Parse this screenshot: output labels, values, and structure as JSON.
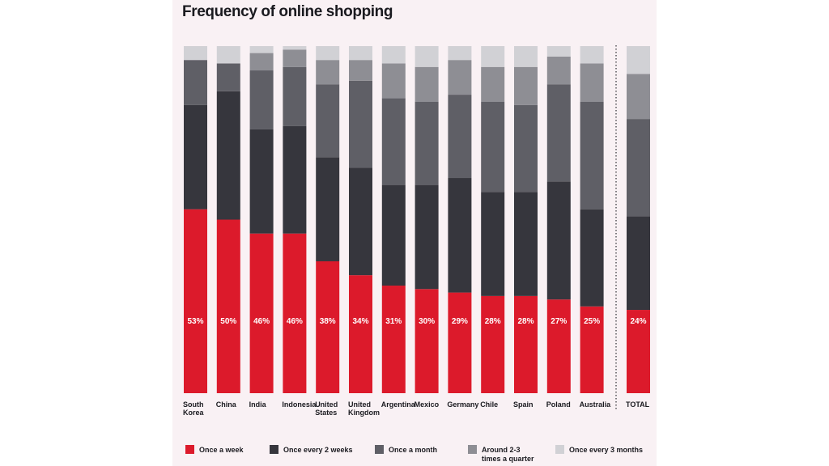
{
  "chart_data": {
    "type": "bar",
    "stacked": true,
    "percent_stacked": true,
    "title": "Frequency of online shopping",
    "categories": [
      [
        "South",
        "Korea"
      ],
      [
        "China"
      ],
      [
        "India"
      ],
      [
        "Indonesia"
      ],
      [
        "United",
        "States"
      ],
      [
        "United",
        "Kingdom"
      ],
      [
        "Argentina"
      ],
      [
        "Mexico"
      ],
      [
        "Germany"
      ],
      [
        "Chile"
      ],
      [
        "Spain"
      ],
      [
        "Poland"
      ],
      [
        "Australia"
      ],
      [
        "TOTAL"
      ]
    ],
    "series": [
      {
        "name": "Once a week",
        "color": "#dc1a2b",
        "values": [
          53,
          50,
          46,
          46,
          38,
          34,
          31,
          30,
          29,
          28,
          28,
          27,
          25,
          24
        ],
        "labels": [
          "53%",
          "50%",
          "46%",
          "46%",
          "38%",
          "34%",
          "31%",
          "30%",
          "29%",
          "28%",
          "28%",
          "27%",
          "25%",
          "24%"
        ]
      },
      {
        "name": "Once every 2 weeks",
        "color": "#36363d",
        "values": [
          30,
          37,
          30,
          31,
          30,
          31,
          29,
          30,
          33,
          30,
          30,
          34,
          28,
          27
        ]
      },
      {
        "name": "Once a month",
        "color": "#5f5f66",
        "values": [
          13,
          8,
          17,
          17,
          21,
          25,
          25,
          24,
          24,
          26,
          25,
          28,
          31,
          28
        ]
      },
      {
        "name": "Around 2-3 times a quarter",
        "color": "#8e8e94",
        "values": [
          0,
          0,
          5,
          5,
          7,
          6,
          10,
          10,
          10,
          10,
          11,
          8,
          11,
          13
        ]
      },
      {
        "name": "Once every 3 months",
        "color": "#d1d1d5",
        "values": [
          4,
          5,
          2,
          1,
          4,
          4,
          5,
          6,
          4,
          6,
          6,
          3,
          5,
          8
        ]
      }
    ],
    "legend_labels": [
      [
        "Once a week"
      ],
      [
        "Once every 2 weeks"
      ],
      [
        "Once a month"
      ],
      [
        "Around 2-3",
        "times a quarter"
      ],
      [
        "Once every 3 months"
      ]
    ],
    "ylim": [
      0,
      100
    ],
    "grid": false,
    "legend_position": "bottom"
  }
}
